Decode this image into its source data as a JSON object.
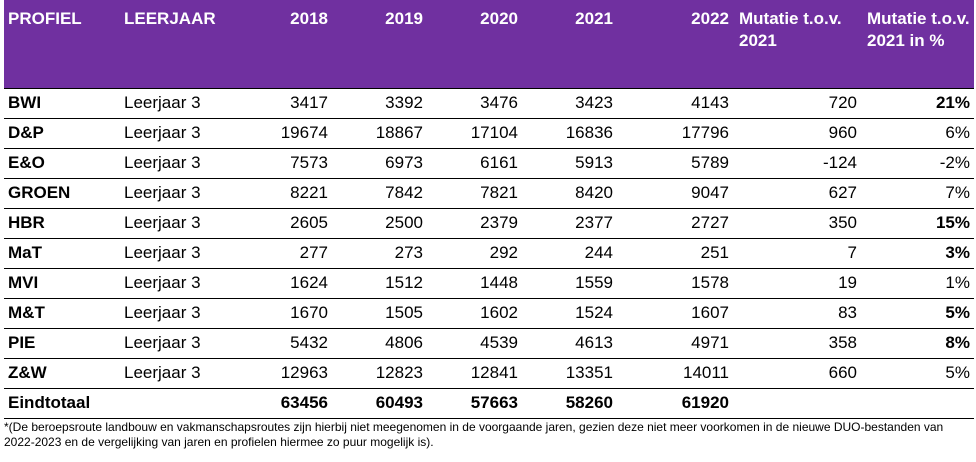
{
  "header": {
    "profiel": "PROFIEL",
    "leerjaar": "LEERJAAR",
    "y2018": "2018",
    "y2019": "2019",
    "y2020": "2020",
    "y2021": "2021",
    "y2022": "2022",
    "mutatie": "Mutatie t.o.v. 2021",
    "mutatie_pct": "Mutatie t.o.v. 2021 in %"
  },
  "rows": [
    {
      "profiel": "BWI",
      "leerjaar": "Leerjaar 3",
      "y2018": "3417",
      "y2019": "3392",
      "y2020": "3476",
      "y2021": "3423",
      "y2022": "4143",
      "mutatie": "720",
      "pct": "21%"
    },
    {
      "profiel": "D&P",
      "leerjaar": "Leerjaar 3",
      "y2018": "19674",
      "y2019": "18867",
      "y2020": "17104",
      "y2021": "16836",
      "y2022": "17796",
      "mutatie": "960",
      "pct": "6%"
    },
    {
      "profiel": "E&O",
      "leerjaar": "Leerjaar 3",
      "y2018": "7573",
      "y2019": "6973",
      "y2020": "6161",
      "y2021": "5913",
      "y2022": "5789",
      "mutatie": "-124",
      "pct": "-2%"
    },
    {
      "profiel": "GROEN",
      "leerjaar": "Leerjaar 3",
      "y2018": "8221",
      "y2019": "7842",
      "y2020": "7821",
      "y2021": "8420",
      "y2022": "9047",
      "mutatie": "627",
      "pct": "7%"
    },
    {
      "profiel": "HBR",
      "leerjaar": "Leerjaar 3",
      "y2018": "2605",
      "y2019": "2500",
      "y2020": "2379",
      "y2021": "2377",
      "y2022": "2727",
      "mutatie": "350",
      "pct": "15%"
    },
    {
      "profiel": "MaT",
      "leerjaar": "Leerjaar 3",
      "y2018": "277",
      "y2019": "273",
      "y2020": "292",
      "y2021": "244",
      "y2022": "251",
      "mutatie": "7",
      "pct": "3%"
    },
    {
      "profiel": "MVI",
      "leerjaar": "Leerjaar 3",
      "y2018": "1624",
      "y2019": "1512",
      "y2020": "1448",
      "y2021": "1559",
      "y2022": "1578",
      "mutatie": "19",
      "pct": "1%"
    },
    {
      "profiel": "M&T",
      "leerjaar": "Leerjaar 3",
      "y2018": "1670",
      "y2019": "1505",
      "y2020": "1602",
      "y2021": "1524",
      "y2022": "1607",
      "mutatie": "83",
      "pct": "5%"
    },
    {
      "profiel": "PIE",
      "leerjaar": "Leerjaar 3",
      "y2018": "5432",
      "y2019": "4806",
      "y2020": "4539",
      "y2021": "4613",
      "y2022": "4971",
      "mutatie": "358",
      "pct": "8%"
    },
    {
      "profiel": "Z&W",
      "leerjaar": "Leerjaar 3",
      "y2018": "12963",
      "y2019": "12823",
      "y2020": "12841",
      "y2021": "13351",
      "y2022": "14011",
      "mutatie": "660",
      "pct": "5%"
    }
  ],
  "total": {
    "label": "Eindtotaal",
    "y2018": "63456",
    "y2019": "60493",
    "y2020": "57663",
    "y2021": "58260",
    "y2022": "61920"
  },
  "footnote": "*(De beroepsroute landbouw en vakmanschapsroutes zijn hierbij niet meegenomen in de voorgaande jaren, gezien deze niet meer voorkomen in de nieuwe DUO-bestanden van 2022-2023 en de vergelijking van jaren en profielen hiermee zo puur mogelijk is)."
}
